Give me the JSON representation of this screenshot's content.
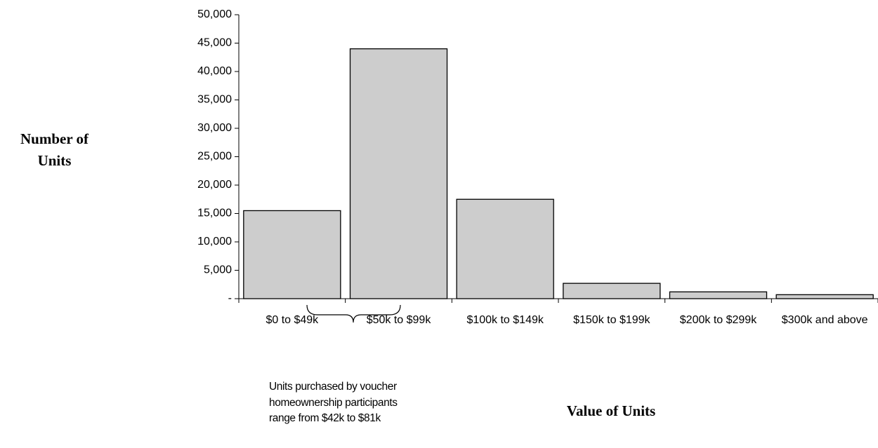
{
  "chart_data": {
    "type": "bar",
    "y_axis_label": "Number of Units",
    "x_axis_label": "Value of Units",
    "annotation": "Units purchased by voucher homeownership participants range from $42k to $81k",
    "categories": [
      "$0 to $49k",
      "$50k to $99k",
      "$100k to $149k",
      "$150k to $199k",
      "$200k to $299k",
      "$300k and above"
    ],
    "values": [
      15500,
      44000,
      17500,
      2700,
      1200,
      700
    ],
    "color": "#cdcdcd",
    "ylim": [
      0,
      50000
    ],
    "yticks": [
      {
        "value": 0,
        "label": "-"
      },
      {
        "value": 5000,
        "label": "5,000"
      },
      {
        "value": 10000,
        "label": "10,000"
      },
      {
        "value": 15000,
        "label": "15,000"
      },
      {
        "value": 20000,
        "label": "20,000"
      },
      {
        "value": 25000,
        "label": "25,000"
      },
      {
        "value": 30000,
        "label": "30,000"
      },
      {
        "value": 35000,
        "label": "35,000"
      },
      {
        "value": 40000,
        "label": "40,000"
      },
      {
        "value": 45000,
        "label": "45,000"
      },
      {
        "value": 50000,
        "label": "50,000"
      }
    ],
    "grid": false
  }
}
